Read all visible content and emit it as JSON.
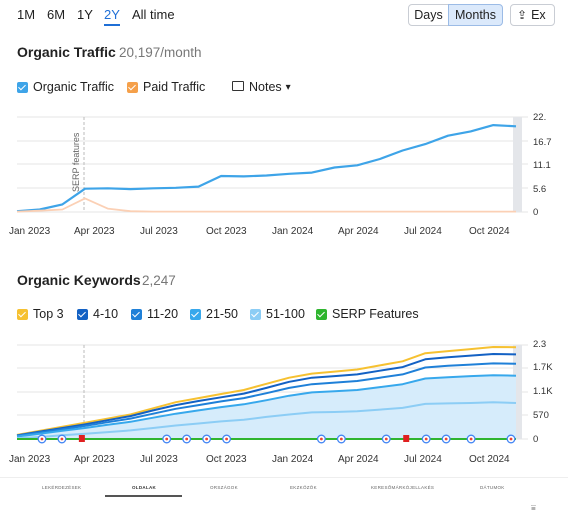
{
  "range_tabs": [
    {
      "label": "1M"
    },
    {
      "label": "6M"
    },
    {
      "label": "1Y"
    },
    {
      "label": "2Y",
      "active": true
    },
    {
      "label": "All time"
    }
  ],
  "granularity": {
    "days": "Days",
    "months": "Months",
    "export": "Ex"
  },
  "organic_traffic": {
    "title": "Organic Traffic",
    "value": "20,197/month",
    "legend": {
      "organic": "Organic Traffic",
      "paid": "Paid Traffic",
      "notes": "Notes"
    },
    "serp_annotation": "SERP features",
    "y_ticks": [
      "22.",
      "16.7",
      "11.1",
      "5.6",
      "0"
    ]
  },
  "organic_keywords": {
    "title": "Organic Keywords",
    "value": "2,247",
    "legend": [
      "Top 3",
      "4-10",
      "11-20",
      "21-50",
      "51-100",
      "SERP Features"
    ],
    "y_ticks": [
      "2.3",
      "1.7K",
      "1.1K",
      "570",
      "0"
    ]
  },
  "x_labels": [
    "Jan 2023",
    "Apr 2023",
    "Jul 2023",
    "Oct 2023",
    "Jan 2024",
    "Apr 2024",
    "Jul 2024",
    "Oct 2024"
  ],
  "bottom_tabs": [
    "LEKÉRDEZÉSEK",
    "OLDALAK",
    "ORSZÁGOK",
    "EKZKÖZÖK",
    "KERESŐMÁRKÓJELLAKÉS",
    "DÁTUMOK"
  ],
  "colors": {
    "organic": "#3ea4e8",
    "paid": "#f5a04a",
    "top3": "#f6c131",
    "k4_10": "#1361c4",
    "k11_20": "#1f80d8",
    "k21_50": "#37a8ec",
    "k51_100": "#8ccdf5",
    "serp": "#2fb52f",
    "accent": "#1f6fd6"
  },
  "chart_data": [
    {
      "type": "line",
      "x": [
        "2023-01",
        "2023-02",
        "2023-03",
        "2023-04",
        "2023-05",
        "2023-06",
        "2023-07",
        "2023-08",
        "2023-09",
        "2023-10",
        "2023-11",
        "2023-12",
        "2024-01",
        "2024-02",
        "2024-03",
        "2024-04",
        "2024-05",
        "2024-06",
        "2024-07",
        "2024-08",
        "2024-09",
        "2024-10",
        "2024-11"
      ],
      "series": [
        {
          "name": "Organic Traffic",
          "values": [
            200,
            600,
            1800,
            5500,
            5600,
            5400,
            5600,
            5700,
            6000,
            8500,
            8400,
            8600,
            9000,
            9300,
            10500,
            11000,
            12500,
            14500,
            16000,
            18000,
            19000,
            20500,
            20197
          ]
        },
        {
          "name": "Paid Traffic",
          "values": [
            100,
            300,
            600,
            3200,
            800,
            200,
            100,
            100,
            100,
            100,
            100,
            100,
            100,
            100,
            100,
            100,
            100,
            100,
            100,
            100,
            100,
            100,
            100
          ]
        }
      ],
      "ylim": [
        0,
        22400
      ]
    },
    {
      "type": "area",
      "x": [
        "2023-01",
        "2023-02",
        "2023-03",
        "2023-04",
        "2023-05",
        "2023-06",
        "2023-07",
        "2023-08",
        "2023-09",
        "2023-10",
        "2023-11",
        "2023-12",
        "2024-01",
        "2024-02",
        "2024-03",
        "2024-04",
        "2024-05",
        "2024-06",
        "2024-07",
        "2024-08",
        "2024-09",
        "2024-10",
        "2024-11"
      ],
      "series": [
        {
          "name": "Top 3",
          "values": [
            100,
            200,
            300,
            400,
            500,
            600,
            750,
            900,
            1000,
            1100,
            1200,
            1350,
            1500,
            1600,
            1650,
            1700,
            1800,
            1900,
            2100,
            2150,
            2200,
            2250,
            2247
          ]
        },
        {
          "name": "4-10",
          "values": [
            90,
            180,
            270,
            360,
            460,
            560,
            700,
            830,
            930,
            1020,
            1110,
            1250,
            1400,
            1500,
            1540,
            1580,
            1670,
            1760,
            1950,
            2000,
            2040,
            2080,
            2070
          ]
        },
        {
          "name": "11-20",
          "values": [
            80,
            160,
            240,
            320,
            410,
            500,
            620,
            740,
            830,
            920,
            1000,
            1120,
            1250,
            1340,
            1380,
            1420,
            1500,
            1580,
            1750,
            1790,
            1820,
            1850,
            1840
          ]
        },
        {
          "name": "21-50",
          "values": [
            60,
            130,
            200,
            270,
            350,
            420,
            520,
            620,
            700,
            780,
            850,
            950,
            1060,
            1140,
            1170,
            1200,
            1270,
            1340,
            1480,
            1510,
            1540,
            1560,
            1550
          ]
        },
        {
          "name": "51-100",
          "values": [
            20,
            50,
            90,
            130,
            170,
            210,
            270,
            330,
            380,
            430,
            470,
            540,
            600,
            650,
            660,
            680,
            720,
            760,
            860,
            870,
            880,
            900,
            880
          ]
        },
        {
          "name": "SERP Features",
          "values": [
            0,
            0,
            0,
            0,
            0,
            0,
            0,
            0,
            0,
            0,
            0,
            0,
            0,
            0,
            0,
            0,
            0,
            0,
            0,
            0,
            0,
            0,
            0
          ]
        }
      ],
      "ylim": [
        0,
        2300
      ]
    }
  ]
}
